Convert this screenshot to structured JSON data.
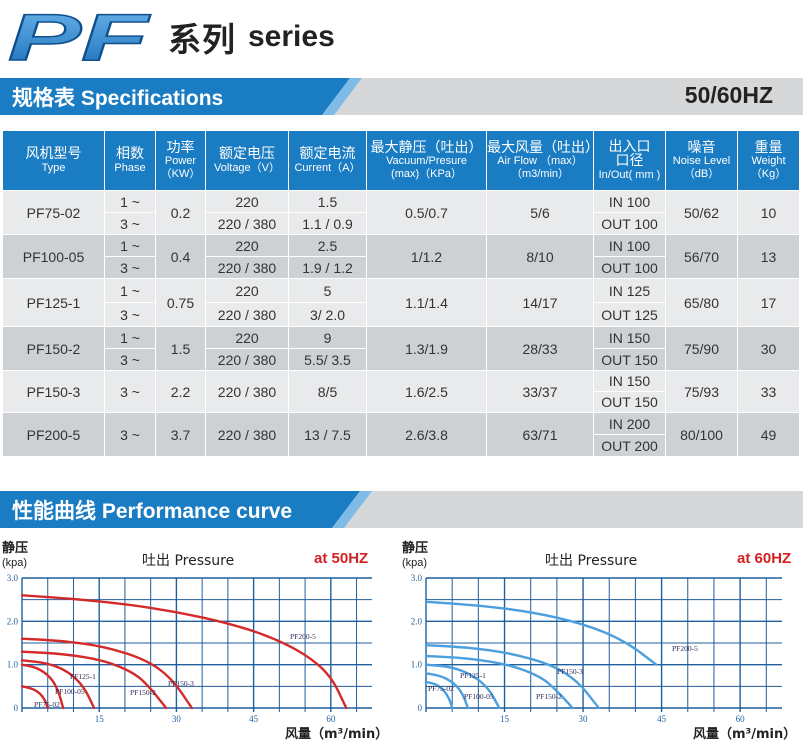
{
  "header": {
    "logo_text": "PF",
    "title_cn": "系列",
    "title_en": "series"
  },
  "specs_bar": {
    "title_cn": "规格表",
    "title_en": "Specifications",
    "frequency": "50/60HZ"
  },
  "table": {
    "headers": [
      {
        "cn": "风机型号",
        "en": "Type"
      },
      {
        "cn": "相数",
        "en": "Phase"
      },
      {
        "cn": "功率",
        "en": "Power",
        "en2": "（KW）"
      },
      {
        "cn": "额定电压",
        "en": "Voltage（V）"
      },
      {
        "cn": "额定电流",
        "en": "Current（A）"
      },
      {
        "cn": "最大静压（吐出）",
        "en": "Vacuum/Presure",
        "en2": "(max)（KPa）"
      },
      {
        "cn": "最大风量（吐出）",
        "en": "Air Flow （max）",
        "en2": "（m3/min）"
      },
      {
        "cn": "出入口",
        "cn2": "口径",
        "en": "In/Out( mm )"
      },
      {
        "cn": "噪音",
        "en": "Noise Level",
        "en2": "（dB）"
      },
      {
        "cn": "重量",
        "en": "Weight",
        "en2": "（Kg）"
      }
    ],
    "rows": [
      {
        "type": "PF75-02",
        "phase": [
          "1 ~",
          "3 ~"
        ],
        "power": "0.2",
        "voltage": [
          "220",
          "220 / 380"
        ],
        "current": [
          "1.5",
          "1.1 / 0.9"
        ],
        "pressure": "0.5/0.7",
        "airflow": "5/6",
        "inout": [
          "IN 100",
          "OUT 100"
        ],
        "noise": "50/62",
        "weight": "10"
      },
      {
        "type": "PF100-05",
        "phase": [
          "1 ~",
          "3 ~"
        ],
        "power": "0.4",
        "voltage": [
          "220",
          "220 / 380"
        ],
        "current": [
          "2.5",
          "1.9 / 1.2"
        ],
        "pressure": "1/1.2",
        "airflow": "8/10",
        "inout": [
          "IN 100",
          "OUT 100"
        ],
        "noise": "56/70",
        "weight": "13"
      },
      {
        "type": "PF125-1",
        "phase": [
          "1 ~",
          "3 ~"
        ],
        "power": "0.75",
        "voltage": [
          "220",
          "220 / 380"
        ],
        "current": [
          "5",
          "3/ 2.0"
        ],
        "pressure": "1.1/1.4",
        "airflow": "14/17",
        "inout": [
          "IN 125",
          "OUT 125"
        ],
        "noise": "65/80",
        "weight": "17"
      },
      {
        "type": "PF150-2",
        "phase": [
          "1 ~",
          "3 ~"
        ],
        "power": "1.5",
        "voltage": [
          "220",
          "220 / 380"
        ],
        "current": [
          "9",
          "5.5/ 3.5"
        ],
        "pressure": "1.3/1.9",
        "airflow": "28/33",
        "inout": [
          "IN 150",
          "OUT 150"
        ],
        "noise": "75/90",
        "weight": "30"
      },
      {
        "type": "PF150-3",
        "phase": [
          "3 ~"
        ],
        "power": "2.2",
        "voltage": [
          "220 / 380"
        ],
        "current": [
          "8/5"
        ],
        "pressure": "1.6/2.5",
        "airflow": "33/37",
        "inout": [
          "IN 150",
          "OUT 150"
        ],
        "noise": "75/93",
        "weight": "33"
      },
      {
        "type": "PF200-5",
        "phase": [
          "3 ~"
        ],
        "power": "3.7",
        "voltage": [
          "220 / 380"
        ],
        "current": [
          "13 / 7.5"
        ],
        "pressure": "2.6/3.8",
        "airflow": "63/71",
        "inout": [
          "IN 200",
          "OUT 200"
        ],
        "noise": "80/100",
        "weight": "49"
      }
    ]
  },
  "curve_bar": {
    "title_cn": "性能曲线",
    "title_en": "Performance curve"
  },
  "chart_data": [
    {
      "type": "line",
      "title": "吐出 Pressure",
      "frequency_label": "at 50HZ",
      "ylabel": "静压",
      "yunit": "(kpa)",
      "xlabel": "风量（m³/min）",
      "xticks": [
        "15",
        "30",
        "45",
        "60"
      ],
      "yticks": [
        "0",
        "1.0",
        "2.0",
        "3.0"
      ],
      "xlim": [
        0,
        68
      ],
      "ylim": [
        0,
        3.0
      ],
      "color": "#d42a2a",
      "series": [
        {
          "name": "PF200-5",
          "x": [
            0,
            10,
            20,
            30,
            40,
            48,
            55,
            60,
            63
          ],
          "y": [
            2.6,
            2.52,
            2.4,
            2.22,
            1.96,
            1.66,
            1.25,
            0.75,
            0
          ]
        },
        {
          "name": "PF150-3",
          "x": [
            0,
            8,
            16,
            24,
            29,
            33
          ],
          "y": [
            1.6,
            1.55,
            1.42,
            1.12,
            0.7,
            0
          ]
        },
        {
          "name": "PF150-2",
          "x": [
            0,
            8,
            16,
            22,
            25,
            28
          ],
          "y": [
            1.3,
            1.25,
            1.1,
            0.8,
            0.45,
            0
          ]
        },
        {
          "name": "PF125-1",
          "x": [
            0,
            5,
            9,
            12,
            14
          ],
          "y": [
            1.1,
            1.04,
            0.84,
            0.5,
            0
          ]
        },
        {
          "name": "PF100-05",
          "x": [
            0,
            3,
            5.5,
            7,
            8
          ],
          "y": [
            1.0,
            0.93,
            0.72,
            0.42,
            0
          ]
        },
        {
          "name": "PF75-02",
          "x": [
            0,
            2,
            3.5,
            4.5,
            5
          ],
          "y": [
            0.5,
            0.45,
            0.34,
            0.18,
            0
          ]
        }
      ]
    },
    {
      "type": "line",
      "title": "吐出 Pressure",
      "frequency_label": "at 60HZ",
      "ylabel": "静压",
      "yunit": "(kpa)",
      "xlabel": "风量（m³/min）",
      "xticks": [
        "15",
        "30",
        "45",
        "60"
      ],
      "yticks": [
        "0",
        "1.0",
        "2.0",
        "3.0"
      ],
      "xlim": [
        0,
        68
      ],
      "ylim": [
        0,
        3.0
      ],
      "color": "#4c9fdc",
      "series": [
        {
          "name": "PF200-5",
          "x": [
            0,
            10,
            20,
            30,
            38,
            44
          ],
          "y": [
            2.45,
            2.37,
            2.22,
            1.95,
            1.55,
            1.0
          ]
        },
        {
          "name": "PF150-3",
          "x": [
            0,
            8,
            16,
            24,
            29,
            33
          ],
          "y": [
            1.45,
            1.4,
            1.27,
            1.0,
            0.62,
            0
          ]
        },
        {
          "name": "PF150-2",
          "x": [
            0,
            8,
            16,
            22,
            25,
            28
          ],
          "y": [
            1.2,
            1.15,
            1.0,
            0.72,
            0.4,
            0
          ]
        },
        {
          "name": "PF125-1",
          "x": [
            0,
            5,
            9,
            12,
            14
          ],
          "y": [
            1.0,
            0.95,
            0.75,
            0.45,
            0
          ]
        },
        {
          "name": "PF100-05",
          "x": [
            0,
            3,
            5.5,
            7,
            8
          ],
          "y": [
            0.8,
            0.74,
            0.56,
            0.33,
            0
          ]
        },
        {
          "name": "PF75-02",
          "x": [
            0,
            2,
            3.5,
            4.5,
            5
          ],
          "y": [
            0.6,
            0.55,
            0.4,
            0.2,
            0
          ]
        }
      ]
    }
  ],
  "colors": {
    "brand_blue": "#1a7cc2",
    "bar_gray": "#d6d7d8",
    "grid_blue": "#1f5f9e"
  }
}
